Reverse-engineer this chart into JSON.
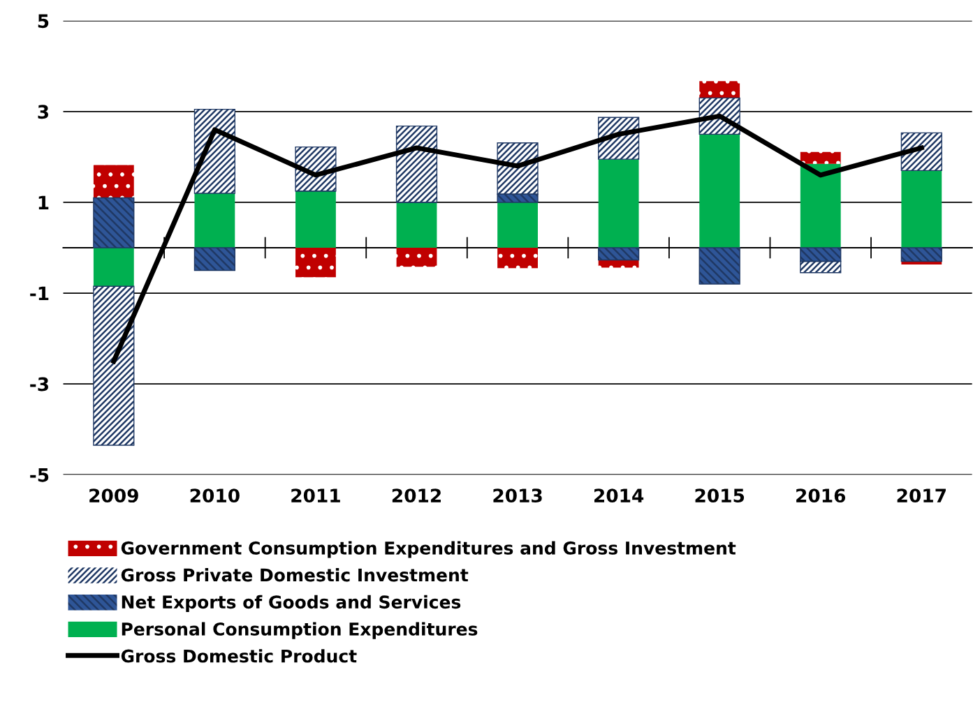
{
  "chart_data": {
    "type": "bar",
    "stacked": true,
    "categories": [
      "2009",
      "2010",
      "2011",
      "2012",
      "2013",
      "2014",
      "2015",
      "2016",
      "2017"
    ],
    "series": [
      {
        "name": "Personal Consumption Expenditures",
        "color": "#00b050",
        "values": [
          -0.85,
          1.2,
          1.25,
          1.0,
          1.0,
          1.95,
          2.5,
          1.85,
          1.7
        ]
      },
      {
        "name": "Net Exports of Goods and Services",
        "color": "#2e5597",
        "values": [
          1.1,
          -0.5,
          0,
          0,
          0.18,
          -0.27,
          -0.8,
          -0.3,
          -0.3
        ]
      },
      {
        "name": "Gross Private Domestic Investment",
        "color": "#1f3864",
        "values": [
          -3.5,
          1.85,
          0.97,
          1.68,
          1.13,
          0.92,
          0.8,
          -0.25,
          0.83
        ]
      },
      {
        "name": "Government Consumption Expenditures and Gross Investment",
        "color": "#c00000",
        "values": [
          0.72,
          0,
          -0.65,
          -0.42,
          -0.45,
          -0.17,
          0.37,
          0.26,
          -0.07
        ]
      },
      {
        "name": "Gross Domestic Product",
        "type": "line",
        "color": "#000000",
        "values": [
          -2.5,
          2.6,
          1.6,
          2.2,
          1.8,
          2.5,
          2.9,
          1.6,
          2.2
        ]
      }
    ],
    "ylim": [
      -5,
      5
    ],
    "yticks": [
      5,
      3,
      1,
      -1,
      -3,
      -5
    ],
    "grid": "y",
    "legend": "bottom",
    "line_style": "solid",
    "marker": "none"
  }
}
